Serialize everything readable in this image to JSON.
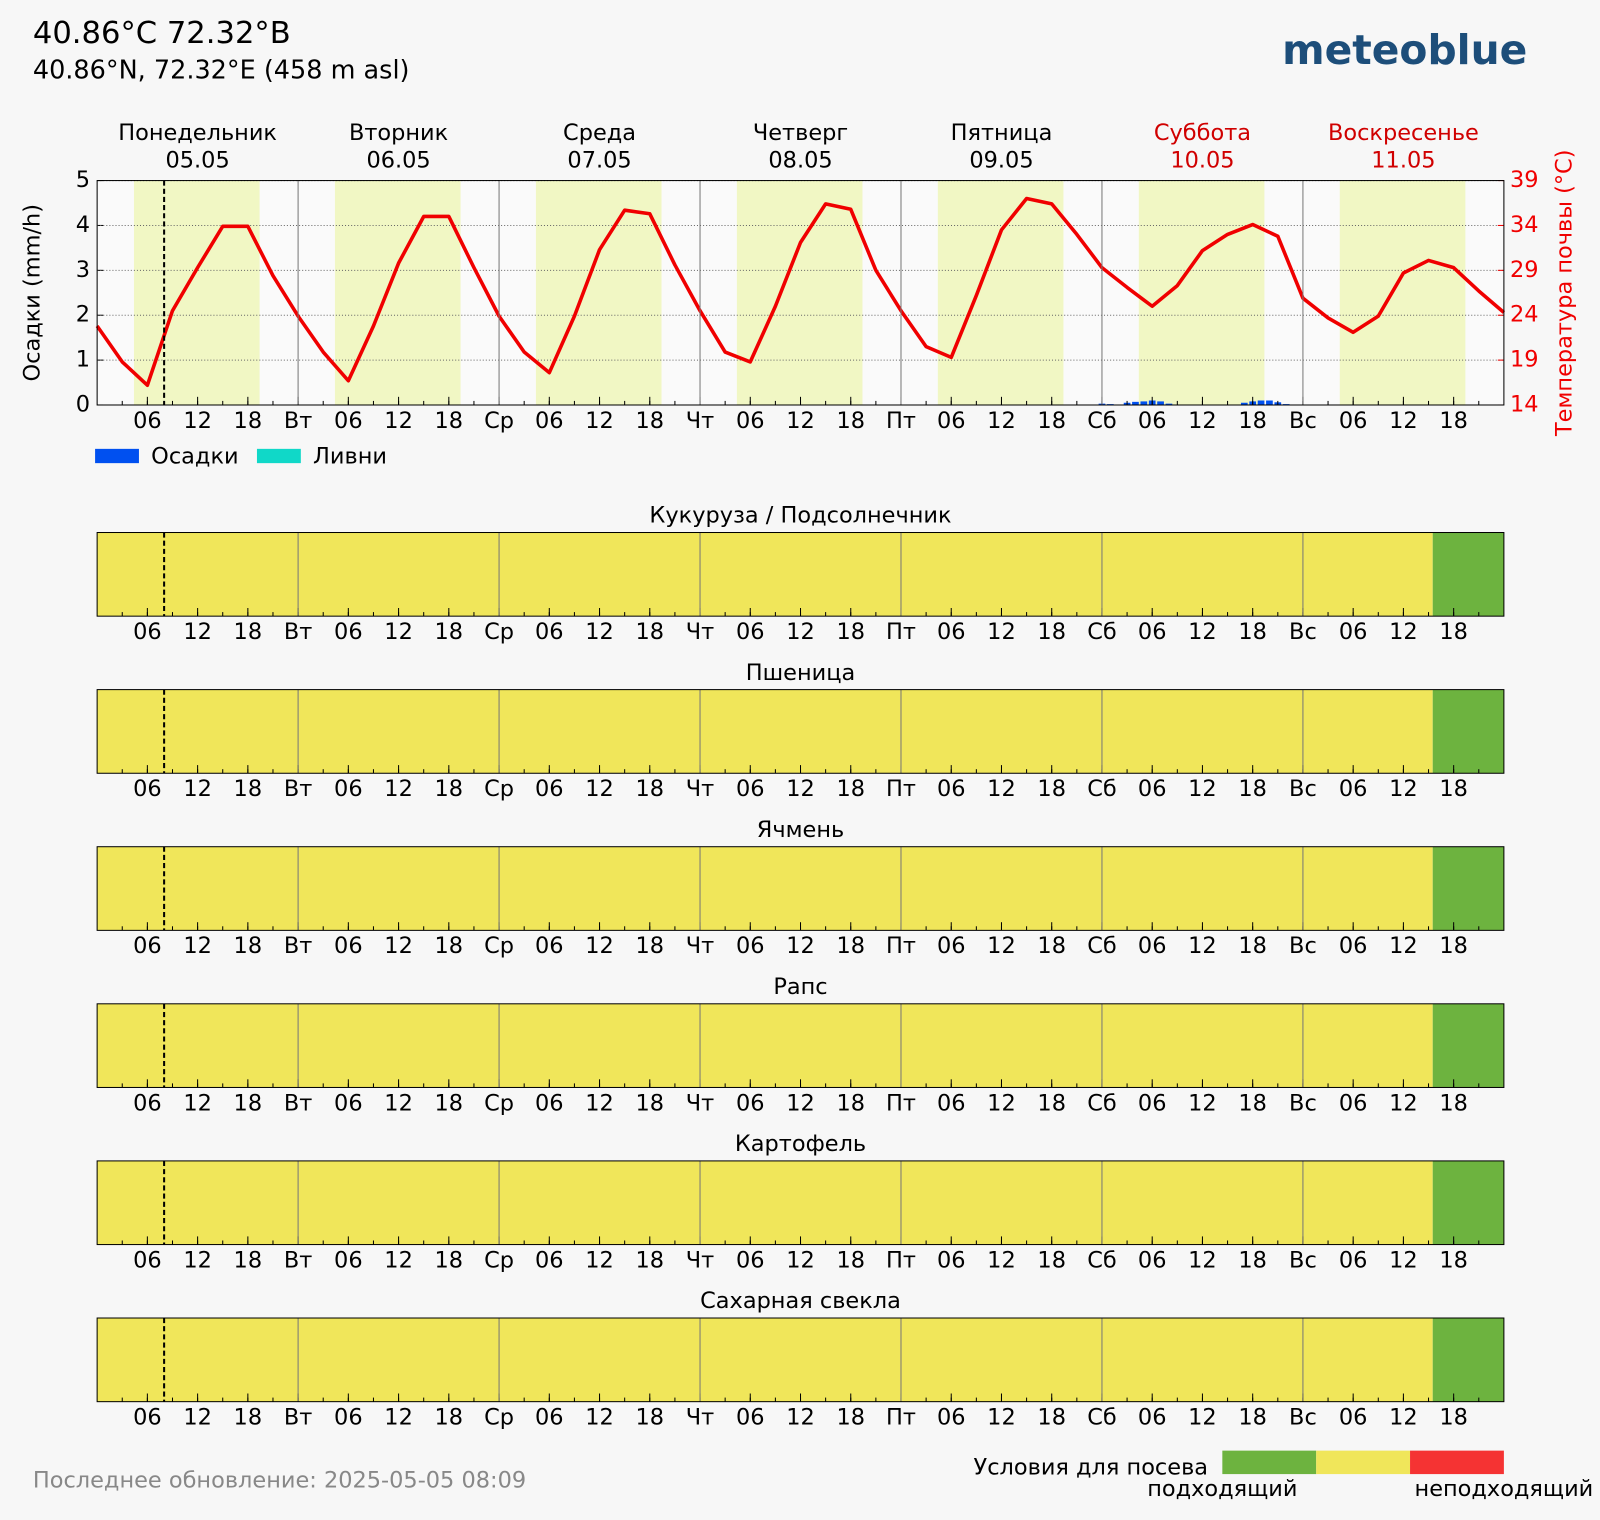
{
  "header": {
    "title": "40.86°C 72.32°B",
    "subtitle": "40.86°N, 72.32°E (458 m asl)",
    "logo": "meteoblue",
    "footer": "Последнее обновление: 2025-05-05 08:09"
  },
  "chart_data": {
    "type": "bar_line",
    "ylabel": "Осадки (mm/h)",
    "y2label": "Температура почвы (°C)",
    "xlim": [
      0,
      168
    ],
    "ylim": [
      0,
      5
    ],
    "yticks": [
      0,
      1,
      2,
      3,
      4,
      5
    ],
    "y2lim": [
      14,
      39
    ],
    "y2ticks": [
      14,
      19,
      24,
      29,
      34,
      39
    ],
    "grid": true,
    "xminor_step": 3,
    "xticks": [
      {
        "value": 6,
        "label": "06"
      },
      12,
      18,
      {
        "value": 24,
        "label": "Вт"
      },
      {
        "value": 30,
        "label": "06"
      },
      {
        "value": 36,
        "label": "12"
      },
      {
        "value": 42,
        "label": "18"
      },
      {
        "value": 48,
        "label": "Ср"
      },
      {
        "value": 54,
        "label": "06"
      },
      {
        "value": 60,
        "label": "12"
      },
      {
        "value": 66,
        "label": "18"
      },
      {
        "value": 72,
        "label": "Чт"
      },
      {
        "value": 78,
        "label": "06"
      },
      {
        "value": 84,
        "label": "12"
      },
      {
        "value": 90,
        "label": "18"
      },
      {
        "value": 96,
        "label": "Пт"
      },
      {
        "value": 102,
        "label": "06"
      },
      {
        "value": 108,
        "label": "12"
      },
      {
        "value": 114,
        "label": "18"
      },
      {
        "value": 120,
        "label": "Сб"
      },
      {
        "value": 126,
        "label": "06"
      },
      {
        "value": 132,
        "label": "12"
      },
      {
        "value": 138,
        "label": "18"
      },
      {
        "value": 144,
        "label": "Вс"
      },
      {
        "value": 150,
        "label": "06"
      },
      {
        "value": 156,
        "label": "12"
      },
      {
        "value": 162,
        "label": "18"
      }
    ],
    "days": [
      {
        "name": "Понедельник",
        "date": "05.05",
        "start": 0,
        "color": "#000000"
      },
      {
        "name": "Вторник",
        "date": "06.05",
        "start": 24,
        "color": "#000000"
      },
      {
        "name": "Среда",
        "date": "07.05",
        "start": 48,
        "color": "#000000"
      },
      {
        "name": "Четверг",
        "date": "08.05",
        "start": 72,
        "color": "#000000"
      },
      {
        "name": "Пятница",
        "date": "09.05",
        "start": 96,
        "color": "#000000"
      },
      {
        "name": "Суббота",
        "date": "10.05",
        "start": 120,
        "color": "#d00000"
      },
      {
        "name": "Воскресенье",
        "date": "11.05",
        "start": 144,
        "color": "#d00000"
      }
    ],
    "daylight": [
      [
        4.4,
        19.4
      ],
      [
        28.4,
        43.4
      ],
      [
        52.4,
        67.4
      ],
      [
        76.4,
        91.4
      ],
      [
        100.4,
        115.4
      ],
      [
        124.4,
        139.4
      ],
      [
        148.4,
        163.4
      ]
    ],
    "daylight_color": "#f1f7c4",
    "now": 8,
    "series": [
      {
        "name": "Осадки",
        "color": "#0050f0",
        "x": [
          120,
          121,
          123,
          124,
          125,
          126,
          127,
          128,
          137,
          138,
          139,
          140,
          141,
          142
        ],
        "values": [
          0.03,
          0.02,
          0.05,
          0.07,
          0.08,
          0.1,
          0.08,
          0.03,
          0.05,
          0.08,
          0.1,
          0.1,
          0.06,
          0.02
        ]
      },
      {
        "name": "Ливни",
        "color": "#10d8c8",
        "x": [],
        "values": []
      },
      {
        "axis": "y2",
        "color": "#f00000",
        "x": [
          0,
          3,
          6,
          9,
          12,
          15,
          18,
          21,
          24,
          27,
          30,
          33,
          36,
          39,
          42,
          45,
          48,
          51,
          54,
          57,
          60,
          63,
          66,
          69,
          72,
          75,
          78,
          81,
          84,
          87,
          90,
          93,
          96,
          99,
          102,
          105,
          108,
          111,
          114,
          117,
          120,
          123,
          126,
          129,
          132,
          135,
          138,
          141,
          144,
          147,
          150,
          153,
          156,
          159,
          162,
          165,
          168
        ],
        "values": [
          22.8,
          18.8,
          16.2,
          24.5,
          29.3,
          33.9,
          33.9,
          28.4,
          23.9,
          19.9,
          16.7,
          22.8,
          29.8,
          35.0,
          35.0,
          29.3,
          23.9,
          19.9,
          17.6,
          23.9,
          31.3,
          35.7,
          35.3,
          29.6,
          24.5,
          19.9,
          18.8,
          25.0,
          32.1,
          36.4,
          35.8,
          29.0,
          24.5,
          20.5,
          19.3,
          26.2,
          33.5,
          37.0,
          36.4,
          33.0,
          29.3,
          27.1,
          25.0,
          27.3,
          31.2,
          33.0,
          34.1,
          32.8,
          25.9,
          23.7,
          22.1,
          23.9,
          28.7,
          30.1,
          29.3,
          26.7,
          24.3
        ]
      }
    ]
  },
  "crops": [
    {
      "title": "Кукуруза / Подсолнечник",
      "segments": [
        {
          "start": 0,
          "end": 159.5,
          "color": "#f0e65a"
        },
        {
          "start": 159.5,
          "end": 168,
          "color": "#6db33f"
        }
      ]
    },
    {
      "title": "Пшеница",
      "segments": [
        {
          "start": 0,
          "end": 159.5,
          "color": "#f0e65a"
        },
        {
          "start": 159.5,
          "end": 168,
          "color": "#6db33f"
        }
      ]
    },
    {
      "title": "Ячмень",
      "segments": [
        {
          "start": 0,
          "end": 159.5,
          "color": "#f0e65a"
        },
        {
          "start": 159.5,
          "end": 168,
          "color": "#6db33f"
        }
      ]
    },
    {
      "title": "Рапс",
      "segments": [
        {
          "start": 0,
          "end": 159.5,
          "color": "#f0e65a"
        },
        {
          "start": 159.5,
          "end": 168,
          "color": "#6db33f"
        }
      ]
    },
    {
      "title": "Картофель",
      "segments": [
        {
          "start": 0,
          "end": 159.5,
          "color": "#f0e65a"
        },
        {
          "start": 159.5,
          "end": 168,
          "color": "#6db33f"
        }
      ]
    },
    {
      "title": "Сахарная свекла",
      "segments": [
        {
          "start": 0,
          "end": 159.5,
          "color": "#f0e65a"
        },
        {
          "start": 159.5,
          "end": 168,
          "color": "#6db33f"
        }
      ]
    }
  ],
  "sowing_legend": {
    "title": "Условия для посева",
    "colors": [
      "#6db33f",
      "#f0e65a",
      "#f53333"
    ],
    "labels": [
      "подходящий",
      "неподходящий"
    ]
  }
}
